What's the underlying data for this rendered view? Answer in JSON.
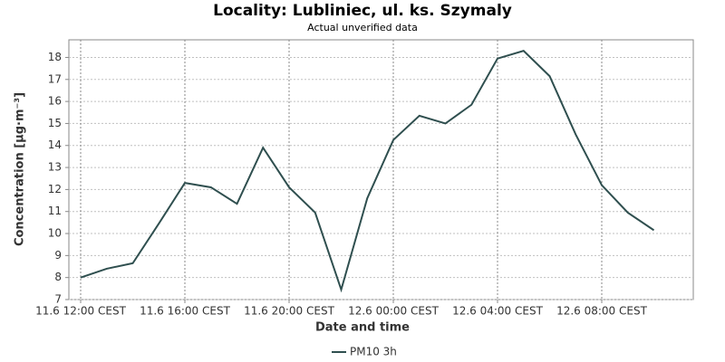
{
  "chart_data": {
    "type": "line",
    "title": "Locality: Lubliniec, ul. ks. Szymaly",
    "subtitle": "Actual unverified data",
    "x_label": "Date and time",
    "y_label": "Concentration [µg·m⁻³]",
    "categories": [
      "11.6 12:00 CEST",
      null,
      null,
      null,
      "11.6 16:00 CEST",
      null,
      null,
      null,
      "11.6 20:00 CEST",
      null,
      null,
      null,
      "12.6 00:00 CEST",
      null,
      null,
      null,
      "12.6 04:00 CEST",
      null,
      null,
      null,
      "12.6 08:00 CEST",
      null,
      null
    ],
    "series": [
      {
        "name": "PM10 3h",
        "color": "#2f4f4f",
        "values": [
          8.0,
          8.4,
          8.65,
          10.45,
          12.3,
          12.1,
          11.35,
          13.9,
          12.1,
          10.95,
          7.45,
          11.6,
          14.25,
          15.35,
          15.0,
          15.85,
          17.95,
          18.3,
          17.15,
          14.5,
          12.2,
          10.95,
          10.15
        ]
      }
    ],
    "ylim": [
      7,
      18.8
    ],
    "yticks": [
      7,
      8,
      9,
      10,
      11,
      12,
      13,
      14,
      15,
      16,
      17,
      18
    ],
    "grid": true,
    "legend": "bottom"
  }
}
